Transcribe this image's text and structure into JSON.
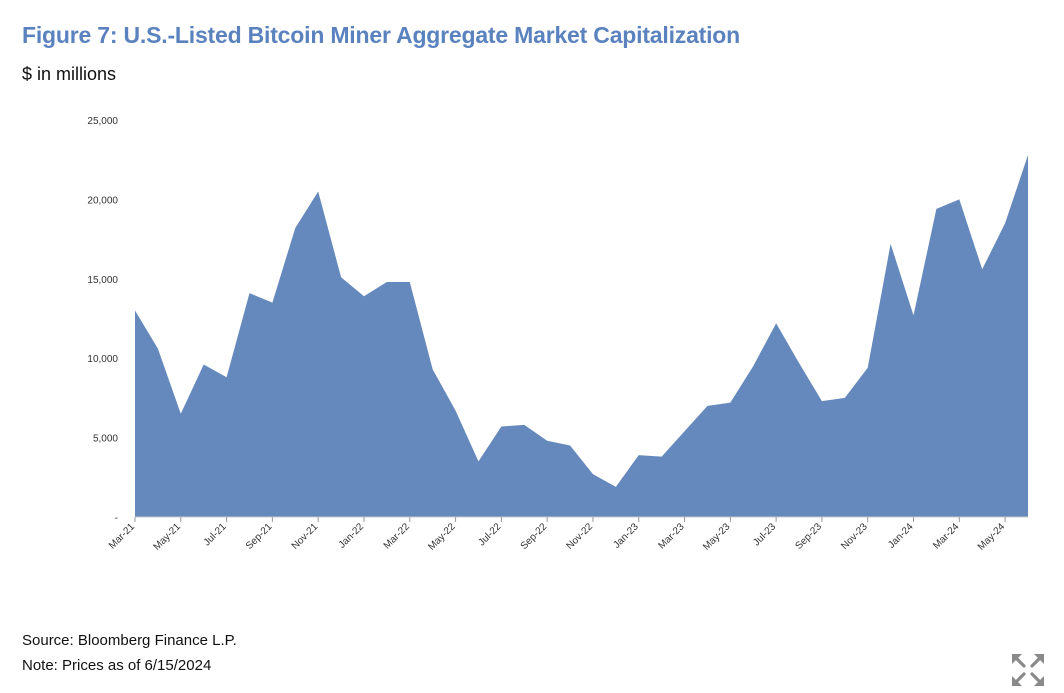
{
  "header": {
    "title": "Figure 7: U.S.-Listed Bitcoin Miner Aggregate Market Capitalization",
    "subtitle": "$ in millions"
  },
  "footer": {
    "source": "Source: Bloomberg Finance L.P.",
    "note": "Note: Prices as of 6/15/2024"
  },
  "controls": {
    "expand_icon": "expand-arrows-icon"
  },
  "colors": {
    "title": "#5a82bf",
    "area_fill": "#6689bd"
  },
  "chart_data": {
    "type": "area",
    "title": "Figure 7: U.S.-Listed Bitcoin Miner Aggregate Market Capitalization",
    "subtitle": "$ in millions",
    "xlabel": "",
    "ylabel": "",
    "ylim": [
      0,
      25000
    ],
    "yticks": [
      0,
      5000,
      10000,
      15000,
      20000,
      25000
    ],
    "ytick_labels": [
      "-",
      "5,000",
      "10,000",
      "15,000",
      "20,000",
      "25,000"
    ],
    "grid": false,
    "legend": "none",
    "xtick_labels": [
      "Mar-21",
      "May-21",
      "Jul-21",
      "Sep-21",
      "Nov-21",
      "Jan-22",
      "Mar-22",
      "May-22",
      "Jul-22",
      "Sep-22",
      "Nov-22",
      "Jan-23",
      "Mar-23",
      "May-23",
      "Jul-23",
      "Sep-23",
      "Nov-23",
      "Jan-24",
      "Mar-24",
      "May-24"
    ],
    "x": [
      "Mar-21",
      "Apr-21",
      "May-21",
      "Jun-21",
      "Jul-21",
      "Aug-21",
      "Sep-21",
      "Oct-21",
      "Nov-21",
      "Dec-21",
      "Jan-22",
      "Feb-22",
      "Mar-22",
      "Apr-22",
      "May-22",
      "Jun-22",
      "Jul-22",
      "Aug-22",
      "Sep-22",
      "Oct-22",
      "Nov-22",
      "Dec-22",
      "Jan-23",
      "Feb-23",
      "Mar-23",
      "Apr-23",
      "May-23",
      "Jun-23",
      "Jul-23",
      "Aug-23",
      "Sep-23",
      "Oct-23",
      "Nov-23",
      "Dec-23",
      "Jan-24",
      "Feb-24",
      "Mar-24",
      "Apr-24",
      "May-24",
      "Jun-24"
    ],
    "values": [
      13000,
      10600,
      6500,
      9600,
      8800,
      14100,
      13500,
      18200,
      20500,
      15100,
      13900,
      14800,
      14800,
      9300,
      6700,
      3500,
      5700,
      5800,
      4800,
      4500,
      2700,
      1900,
      3900,
      3800,
      5400,
      7000,
      7200,
      9500,
      12200,
      9700,
      7300,
      7500,
      9400,
      17200,
      12700,
      19400,
      20000,
      15600,
      18500,
      22800
    ]
  }
}
